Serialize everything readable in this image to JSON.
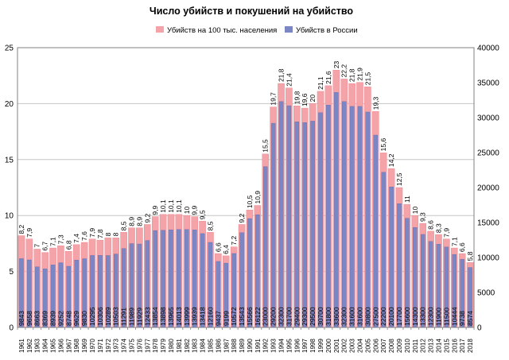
{
  "chart_data": {
    "type": "bar",
    "title": "Число убийств и покушений на убийство",
    "legend_position": "top",
    "grid": true,
    "colors": {
      "rate": "#f4a3a8",
      "rate_stroke": "#ec7f88",
      "count": "#7b86c4",
      "count_stroke": "#5762a8",
      "grid": "#c6c6c6",
      "axis": "#808080"
    },
    "y_left": {
      "ticks": [
        "0",
        "5",
        "10",
        "15",
        "20",
        "25"
      ],
      "min": 0,
      "max": 25
    },
    "y_right": {
      "ticks": [
        "0",
        "5000",
        "10000",
        "15000",
        "20000",
        "25000",
        "30000",
        "35000",
        "40000"
      ],
      "min": 0,
      "max": 40000
    },
    "categories": [
      "1961",
      "1962",
      "1963",
      "1964",
      "1965",
      "1966",
      "1967",
      "1968",
      "1969",
      "1970",
      "1971",
      "1972",
      "1973",
      "1974",
      "1975",
      "1976",
      "1977",
      "1978",
      "1979",
      "1980",
      "1981",
      "1982",
      "1983",
      "1984",
      "1985",
      "1986",
      "1987",
      "1988",
      "1989",
      "1990",
      "1991",
      "1992",
      "1993",
      "1994",
      "1995",
      "1996",
      "1997",
      "1998",
      "1999",
      "2000",
      "2001",
      "2002",
      "2003",
      "2004",
      "2005",
      "2006",
      "2007",
      "2008",
      "2009",
      "2010",
      "2011",
      "2012",
      "2013",
      "2014",
      "2015",
      "2016",
      "2017",
      "2018"
    ],
    "series": [
      {
        "name": "Убийств на 100 тыс. населения",
        "axis": "left",
        "values": [
          8.2,
          7.9,
          7,
          6.7,
          7.1,
          7.3,
          6.8,
          7.4,
          7.6,
          7.9,
          7.8,
          8,
          8,
          8.5,
          8.9,
          8.9,
          9.2,
          9.9,
          10.1,
          10.1,
          10.1,
          10,
          9.9,
          9.5,
          8.5,
          6.6,
          6.4,
          7.2,
          9.2,
          10.5,
          10.9,
          15.5,
          19.7,
          21.8,
          21.4,
          19.8,
          19.6,
          20,
          21.1,
          21.6,
          23,
          22.2,
          21.8,
          21.9,
          21.5,
          19.3,
          15.6,
          14.2,
          12.5,
          11,
          10,
          9.3,
          8.6,
          8.3,
          7.9,
          7.1,
          6.6,
          5.8
        ],
        "labels": [
          "8,2",
          "7,9",
          "7",
          "6,7",
          "7,1",
          "7,3",
          "6,8",
          "7,4",
          "7,6",
          "7,9",
          "7,8",
          "8",
          "8",
          "8,5",
          "8,9",
          "8,9",
          "9,2",
          "9,9",
          "10,1",
          "10,1",
          "10,1",
          "10",
          "9,9",
          "9,5",
          "8,5",
          "6,6",
          "6,4",
          "7,2",
          "9,2",
          "10,5",
          "10,9",
          "15,5",
          "19,7",
          "21,8",
          "21,4",
          "19,8",
          "19,6",
          "20",
          "21,1",
          "21,6",
          "23",
          "22,2",
          "21,8",
          "21,9",
          "21,5",
          "19,3",
          "15,6",
          "14,2",
          "12,5",
          "11",
          "10",
          "9,3",
          "8,6",
          "8,3",
          "7,9",
          "7,1",
          "6,6",
          "5,8"
        ]
      },
      {
        "name": "Убийств в России",
        "axis": "right",
        "values": [
          9843,
          9658,
          8663,
          8369,
          8939,
          9252,
          8748,
          9629,
          9830,
          10295,
          10306,
          10289,
          10503,
          11291,
          11989,
          11929,
          12433,
          13854,
          13898,
          13965,
          14013,
          13999,
          13939,
          13418,
          12160,
          9437,
          9199,
          10572,
          13543,
          15566,
          16122,
          23000,
          29200,
          32300,
          31700,
          29400,
          29300,
          29500,
          30700,
          31800,
          33600,
          32300,
          31600,
          31600,
          30800,
          27500,
          22200,
          20100,
          17700,
          15600,
          14300,
          13300,
          12300,
          11900,
          11500,
          10444,
          9738,
          8574
        ],
        "labels": [
          "9843",
          "9658",
          "8663",
          "8369",
          "8939",
          "9252",
          "8748",
          "9629",
          "9830",
          "10295",
          "10306",
          "10289",
          "10503",
          "11291",
          "11989",
          "11929",
          "12433",
          "13854",
          "13898",
          "13965",
          "14013",
          "13999",
          "13939",
          "13418",
          "12160",
          "9437",
          "9199",
          "10572",
          "13543",
          "15566",
          "16122",
          "23000",
          "29200",
          "32300",
          "31700",
          "29400",
          "29300",
          "29500",
          "30700",
          "31800",
          "33600",
          "32300",
          "31600",
          "31600",
          "30800",
          "27500",
          "22200",
          "20100",
          "17700",
          "15600",
          "14300",
          "13300",
          "12300",
          "11900",
          "11500",
          "10444",
          "9738",
          "8574"
        ]
      }
    ]
  }
}
